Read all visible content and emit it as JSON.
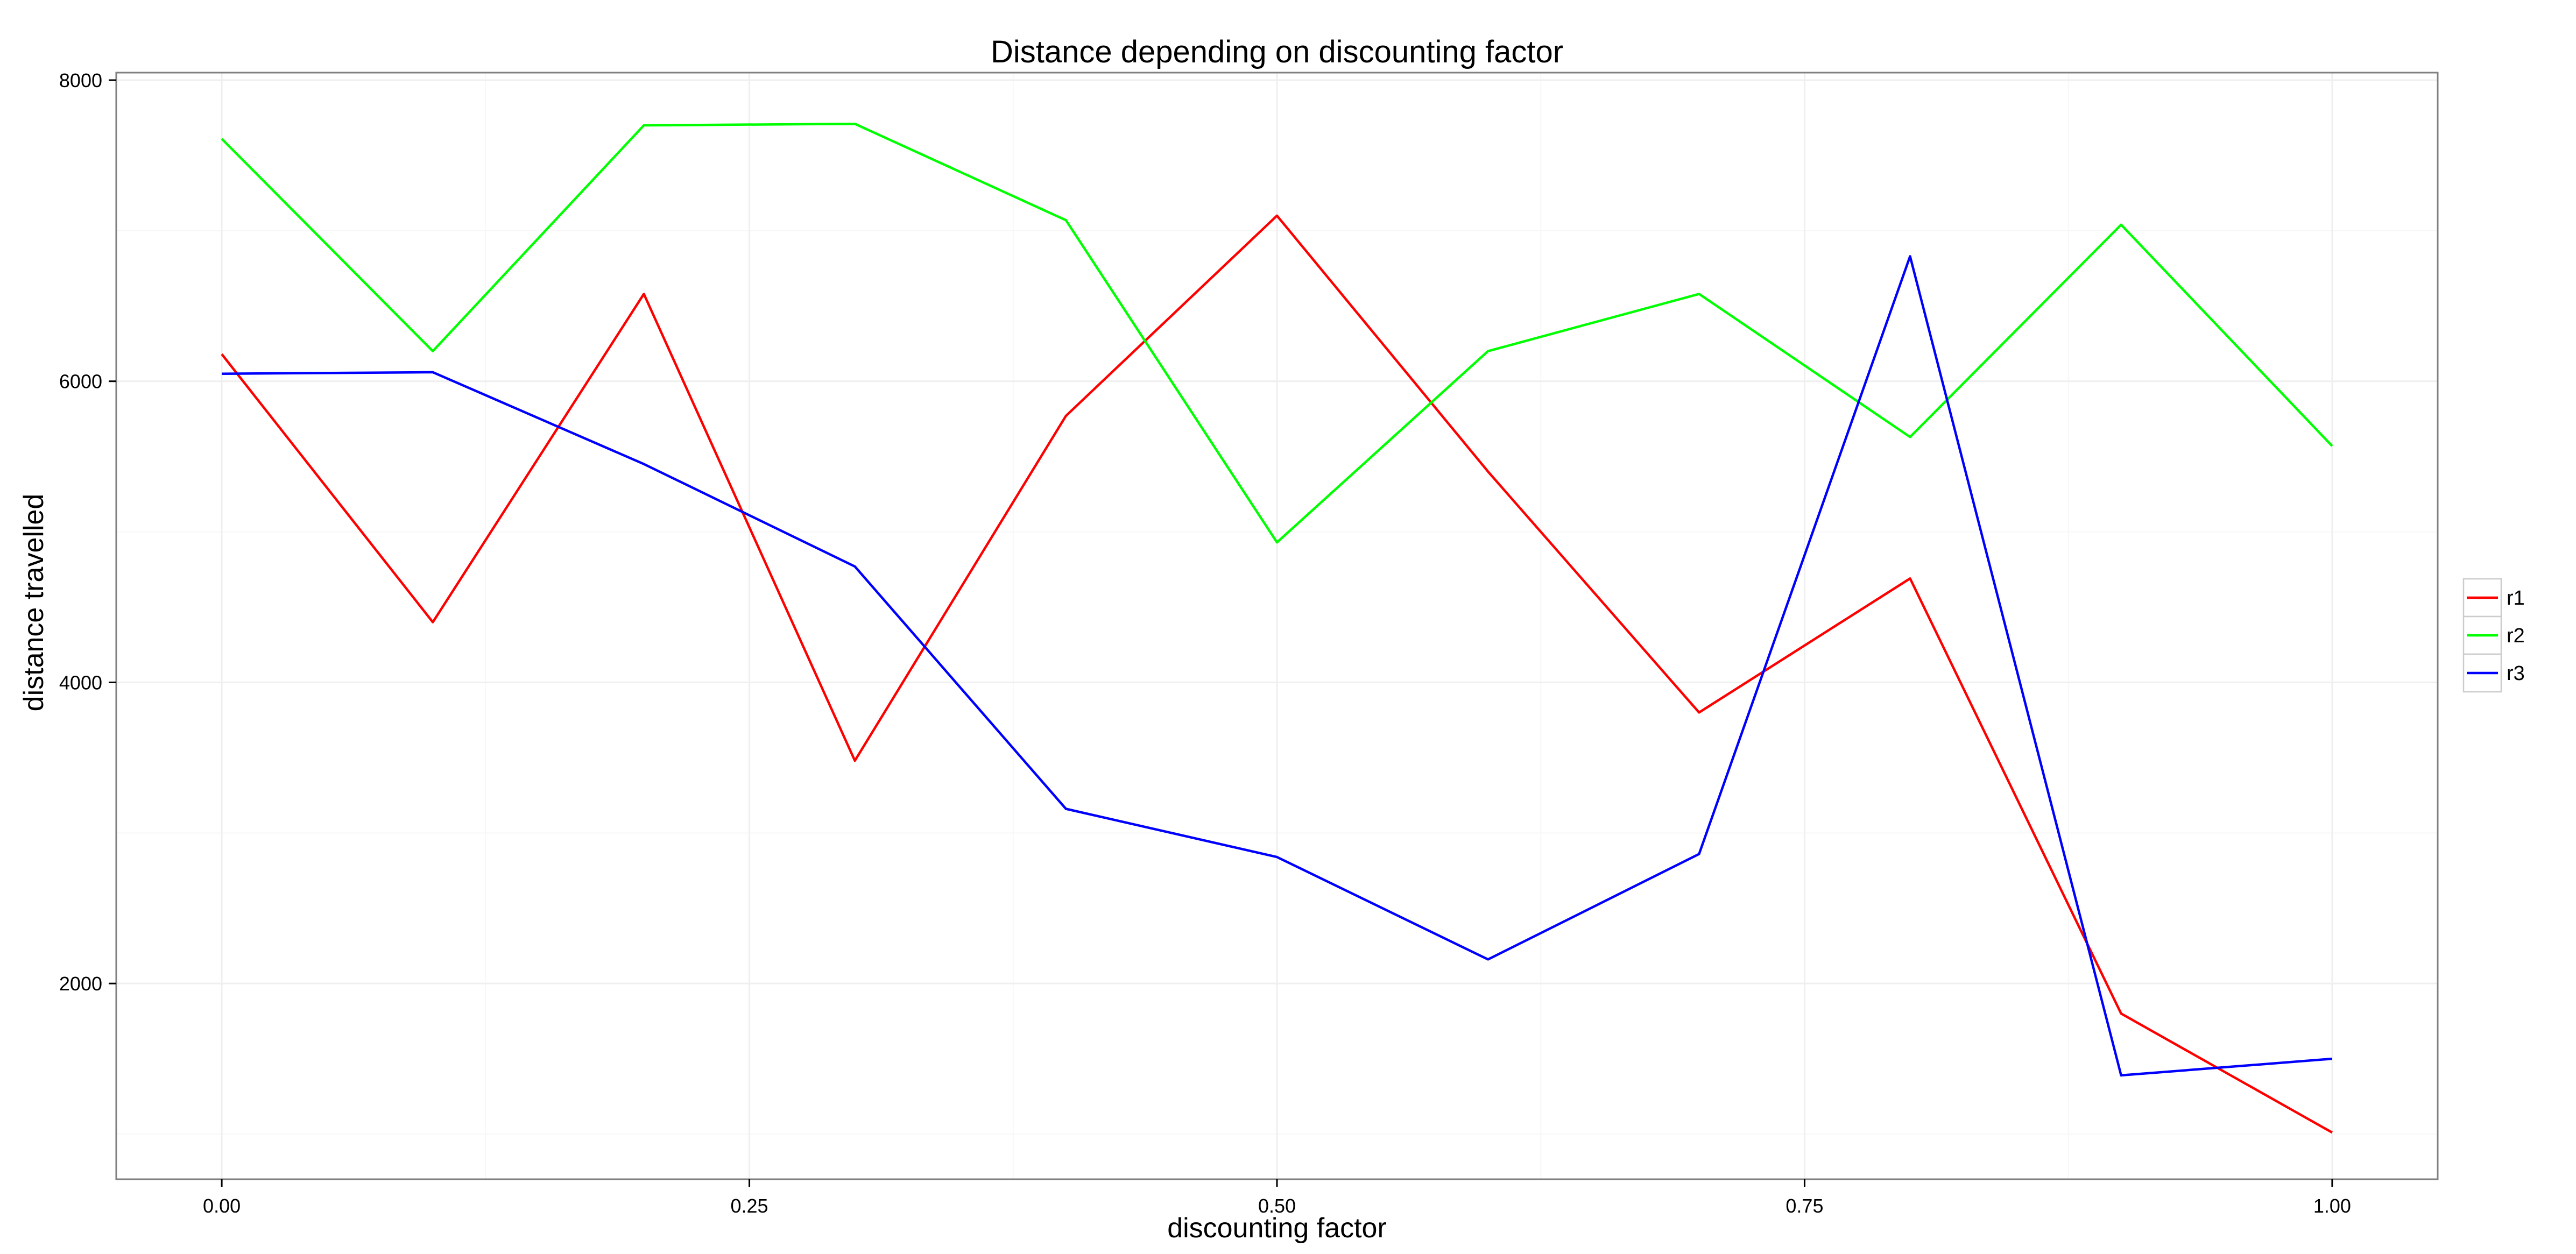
{
  "chart_data": {
    "type": "line",
    "title": "Distance depending on discounting factor",
    "xlabel": "discounting factor",
    "ylabel": "distance travelled",
    "x": [
      0.0,
      0.1,
      0.2,
      0.3,
      0.4,
      0.5,
      0.6,
      0.7,
      0.8,
      0.9,
      1.0
    ],
    "xlim": [
      -0.05,
      1.05
    ],
    "ylim": [
      700,
      8050
    ],
    "xticks": [
      0.0,
      0.25,
      0.5,
      0.75,
      1.0
    ],
    "xtick_labels": [
      "0.00",
      "0.25",
      "0.50",
      "0.75",
      "1.00"
    ],
    "yticks": [
      2000,
      4000,
      6000,
      8000
    ],
    "ytick_labels": [
      "2000",
      "4000",
      "6000",
      "8000"
    ],
    "grid": true,
    "legend_position": "right",
    "series": [
      {
        "name": "r1",
        "color": "#ff0000",
        "values": [
          6180,
          4400,
          6580,
          3480,
          5770,
          7100,
          5400,
          3800,
          4690,
          1800,
          1010
        ]
      },
      {
        "name": "r2",
        "color": "#00ff00",
        "values": [
          7610,
          6200,
          7700,
          7710,
          7070,
          4930,
          6200,
          6580,
          5630,
          7040,
          5570
        ]
      },
      {
        "name": "r3",
        "color": "#0000ff",
        "values": [
          6050,
          6060,
          5450,
          4770,
          3160,
          2840,
          2160,
          2860,
          6830,
          1390,
          1500
        ]
      }
    ]
  }
}
